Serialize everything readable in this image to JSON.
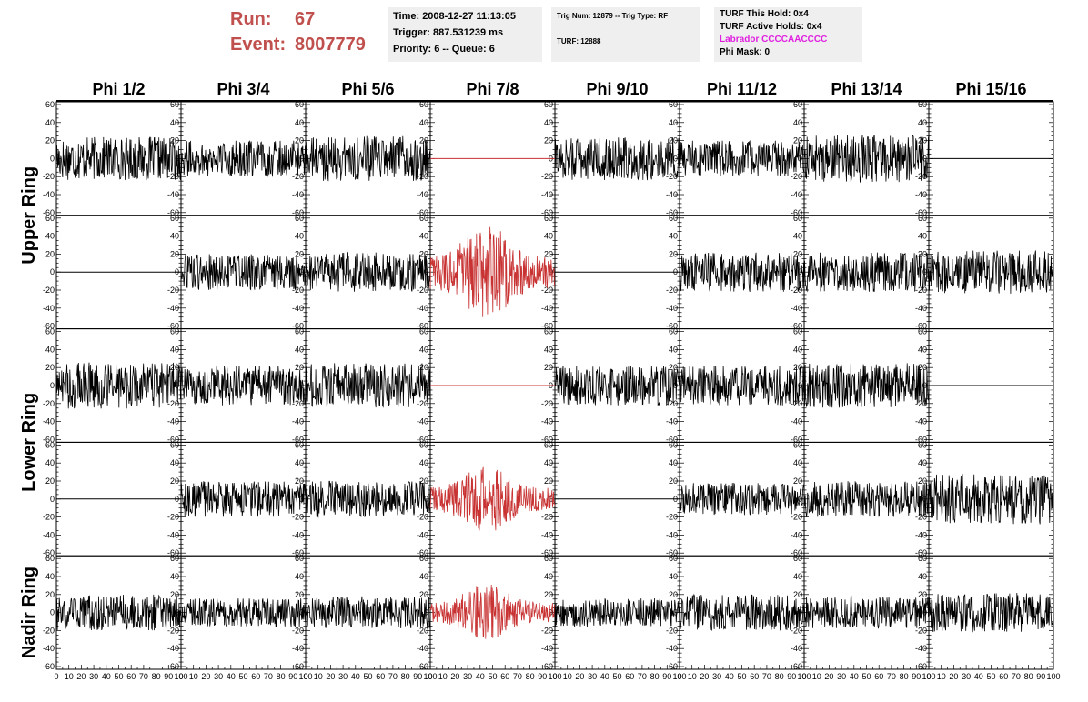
{
  "header": {
    "run_label": "Run:",
    "run_value": "67",
    "event_label": "Event:",
    "event_value": "8007779"
  },
  "info_box_1": {
    "time": "Time: 2008-12-27 11:13:05",
    "trigger": "Trigger: 887.531239 ms",
    "priority": "Priority: 6 -- Queue: 6"
  },
  "info_box_2": {
    "trig": "Trig Num: 12879 -- Trig Type: RF",
    "turf": "TURF: 12888"
  },
  "info_box_3": {
    "this_hold": "TURF This Hold: 0x4",
    "active_holds": "TURF Active Holds: 0x4",
    "labrador": "Labrador CCCCAACCCC",
    "phi_mask": "Phi Mask: 0"
  },
  "colors": {
    "labrador": "#e020e0",
    "run_event": "#c0504d",
    "trace_normal": "#000000",
    "trace_highlight": "#c83232",
    "info_bg": "#efefef"
  },
  "chart_data": {
    "type": "line",
    "columns": [
      "Phi 1/2",
      "Phi 3/4",
      "Phi 5/6",
      "Phi 7/8",
      "Phi 9/10",
      "Phi 11/12",
      "Phi 13/14",
      "Phi 15/16"
    ],
    "row_groups": [
      "Upper Ring",
      "Lower Ring",
      "Nadir Ring"
    ],
    "xlim": [
      0,
      100
    ],
    "ylim": [
      -60,
      60
    ],
    "y_ticks": [
      "-60",
      "-40",
      "-20",
      "0",
      "20",
      "40",
      "60"
    ],
    "x_ticks": [
      "0",
      "10",
      "20",
      "30",
      "40",
      "50",
      "60",
      "70",
      "80",
      "90",
      "100"
    ],
    "grid": false,
    "panels": [
      {
        "row": 0,
        "col": 0,
        "mode": "noise",
        "amp": 24,
        "color": "black"
      },
      {
        "row": 0,
        "col": 1,
        "mode": "noise",
        "amp": 20,
        "color": "black"
      },
      {
        "row": 0,
        "col": 2,
        "mode": "noise",
        "amp": 25,
        "color": "black"
      },
      {
        "row": 0,
        "col": 3,
        "mode": "flat",
        "amp": 0,
        "color": "red"
      },
      {
        "row": 0,
        "col": 4,
        "mode": "noise",
        "amp": 24,
        "color": "black"
      },
      {
        "row": 0,
        "col": 5,
        "mode": "noise",
        "amp": 20,
        "color": "black"
      },
      {
        "row": 0,
        "col": 6,
        "mode": "noise",
        "amp": 26,
        "color": "black"
      },
      {
        "row": 0,
        "col": 7,
        "mode": "flat",
        "amp": 0,
        "color": "black"
      },
      {
        "row": 1,
        "col": 0,
        "mode": "flat",
        "amp": 0,
        "color": "black"
      },
      {
        "row": 1,
        "col": 1,
        "mode": "noise",
        "amp": 20,
        "color": "black"
      },
      {
        "row": 1,
        "col": 2,
        "mode": "noise",
        "amp": 22,
        "color": "black"
      },
      {
        "row": 1,
        "col": 3,
        "mode": "pulse",
        "amp": 40,
        "color": "red"
      },
      {
        "row": 1,
        "col": 4,
        "mode": "flat",
        "amp": 0,
        "color": "black"
      },
      {
        "row": 1,
        "col": 5,
        "mode": "noise",
        "amp": 22,
        "color": "black"
      },
      {
        "row": 1,
        "col": 6,
        "mode": "noise",
        "amp": 22,
        "color": "black"
      },
      {
        "row": 1,
        "col": 7,
        "mode": "noise",
        "amp": 24,
        "color": "black"
      },
      {
        "row": 2,
        "col": 0,
        "mode": "noise",
        "amp": 26,
        "color": "black"
      },
      {
        "row": 2,
        "col": 1,
        "mode": "noise",
        "amp": 22,
        "color": "black"
      },
      {
        "row": 2,
        "col": 2,
        "mode": "noise",
        "amp": 25,
        "color": "black"
      },
      {
        "row": 2,
        "col": 3,
        "mode": "flat",
        "amp": 0,
        "color": "red"
      },
      {
        "row": 2,
        "col": 4,
        "mode": "noise",
        "amp": 22,
        "color": "black"
      },
      {
        "row": 2,
        "col": 5,
        "mode": "noise",
        "amp": 22,
        "color": "black"
      },
      {
        "row": 2,
        "col": 6,
        "mode": "noise",
        "amp": 25,
        "color": "black"
      },
      {
        "row": 2,
        "col": 7,
        "mode": "flat",
        "amp": 0,
        "color": "black"
      },
      {
        "row": 3,
        "col": 0,
        "mode": "flat",
        "amp": 0,
        "color": "black"
      },
      {
        "row": 3,
        "col": 1,
        "mode": "noise",
        "amp": 20,
        "color": "black"
      },
      {
        "row": 3,
        "col": 2,
        "mode": "noise",
        "amp": 20,
        "color": "black"
      },
      {
        "row": 3,
        "col": 3,
        "mode": "pulse",
        "amp": 28,
        "color": "red"
      },
      {
        "row": 3,
        "col": 4,
        "mode": "flat",
        "amp": 0,
        "color": "black"
      },
      {
        "row": 3,
        "col": 5,
        "mode": "noise",
        "amp": 18,
        "color": "black"
      },
      {
        "row": 3,
        "col": 6,
        "mode": "noise",
        "amp": 20,
        "color": "black"
      },
      {
        "row": 3,
        "col": 7,
        "mode": "noise",
        "amp": 28,
        "color": "black"
      },
      {
        "row": 4,
        "col": 0,
        "mode": "noise",
        "amp": 20,
        "color": "black"
      },
      {
        "row": 4,
        "col": 1,
        "mode": "noise",
        "amp": 16,
        "color": "black"
      },
      {
        "row": 4,
        "col": 2,
        "mode": "noise",
        "amp": 18,
        "color": "black"
      },
      {
        "row": 4,
        "col": 3,
        "mode": "pulse",
        "amp": 24,
        "color": "red"
      },
      {
        "row": 4,
        "col": 4,
        "mode": "noise",
        "amp": 16,
        "color": "black"
      },
      {
        "row": 4,
        "col": 5,
        "mode": "noise",
        "amp": 20,
        "color": "black"
      },
      {
        "row": 4,
        "col": 6,
        "mode": "noise",
        "amp": 18,
        "color": "black"
      },
      {
        "row": 4,
        "col": 7,
        "mode": "noise",
        "amp": 22,
        "color": "black"
      }
    ]
  }
}
